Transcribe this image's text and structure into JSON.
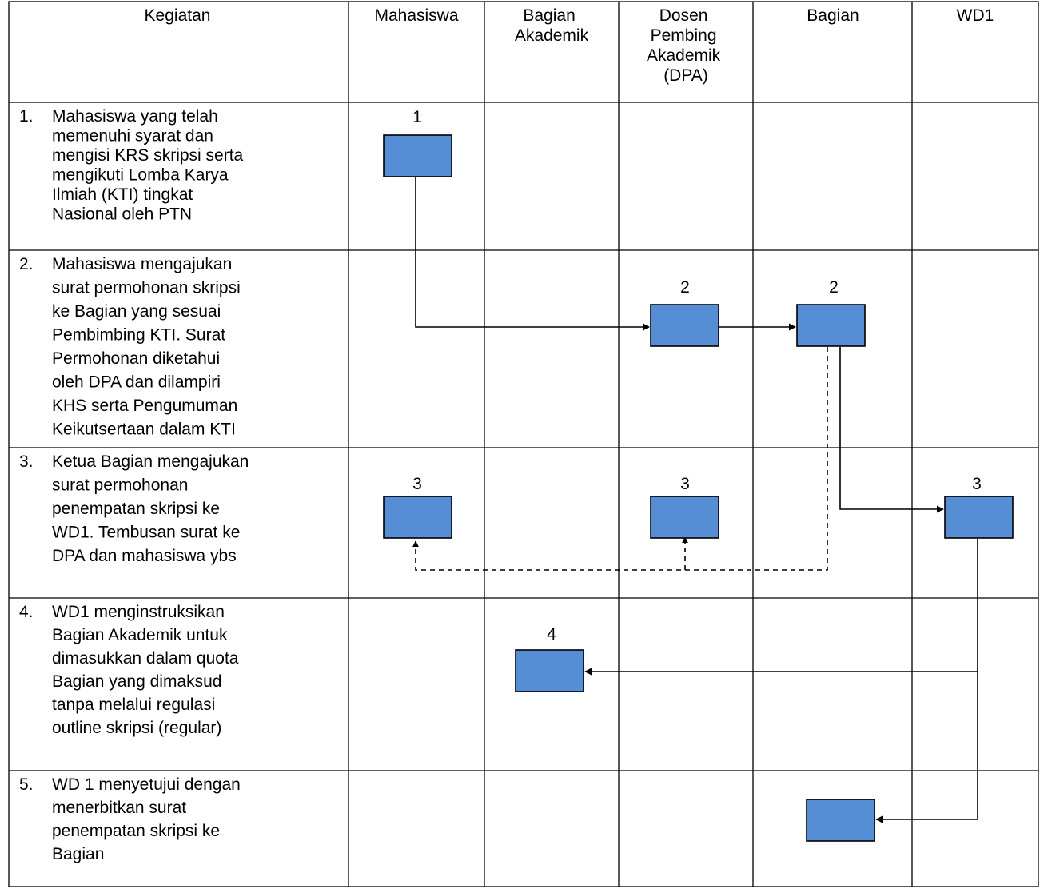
{
  "headers": [
    {
      "lines": [
        "Kegiatan"
      ]
    },
    {
      "lines": [
        "Mahasiswa"
      ]
    },
    {
      "lines": [
        "Bagian",
        "Akademik"
      ]
    },
    {
      "lines": [
        "Dosen",
        "Pembing",
        "Akademik",
        "(DPA)"
      ]
    },
    {
      "lines": [
        "Bagian"
      ]
    },
    {
      "lines": [
        "WD1"
      ]
    }
  ],
  "activities": [
    {
      "number": "1.",
      "lines": [
        "Mahasiswa yang telah",
        "memenuhi syarat dan",
        "mengisi KRS skripsi serta",
        "mengikuti Lomba Karya",
        "Ilmiah (KTI) tingkat",
        "Nasional oleh PTN"
      ]
    },
    {
      "number": "2.",
      "lines": [
        "Mahasiswa mengajukan",
        "surat permohonan skripsi",
        "ke Bagian yang sesuai",
        "Pembimbing KTI. Surat",
        "Permohonan diketahui",
        "oleh DPA dan dilampiri",
        "KHS serta Pengumuman",
        "Keikutsertaan dalam KTI"
      ]
    },
    {
      "number": "3.",
      "lines": [
        "Ketua Bagian mengajukan",
        "surat permohonan",
        "penempatan skripsi ke",
        "WD1. Tembusan surat ke",
        "DPA dan mahasiswa ybs"
      ]
    },
    {
      "number": "4.",
      "lines": [
        "WD1 menginstruksikan",
        "Bagian Akademik untuk",
        "dimasukkan dalam quota",
        "Bagian yang dimaksud",
        "tanpa melalui regulasi",
        "outline skripsi (regular)"
      ]
    },
    {
      "number": "5.",
      "lines": [
        "WD 1 menyetujui dengan",
        "menerbitkan surat",
        "penempatan skripsi ke",
        "Bagian"
      ]
    }
  ],
  "boxes": [
    {
      "id": "b1",
      "label": "1",
      "col": "Mahasiswa",
      "step": 1
    },
    {
      "id": "b2a",
      "label": "2",
      "col": "Dosen Pembing Akademik (DPA)",
      "step": 2
    },
    {
      "id": "b2b",
      "label": "2",
      "col": "Bagian",
      "step": 2
    },
    {
      "id": "b3a",
      "label": "3",
      "col": "Mahasiswa",
      "step": 3
    },
    {
      "id": "b3b",
      "label": "3",
      "col": "Dosen Pembing Akademik (DPA)",
      "step": 3
    },
    {
      "id": "b3c",
      "label": "3",
      "col": "WD1",
      "step": 3
    },
    {
      "id": "b4",
      "label": "4",
      "col": "Bagian Akademik",
      "step": 4
    },
    {
      "id": "b5",
      "label": "",
      "col": "Bagian",
      "step": 5
    }
  ],
  "colors": {
    "box_fill": "#558ed5",
    "line": "#000000"
  }
}
